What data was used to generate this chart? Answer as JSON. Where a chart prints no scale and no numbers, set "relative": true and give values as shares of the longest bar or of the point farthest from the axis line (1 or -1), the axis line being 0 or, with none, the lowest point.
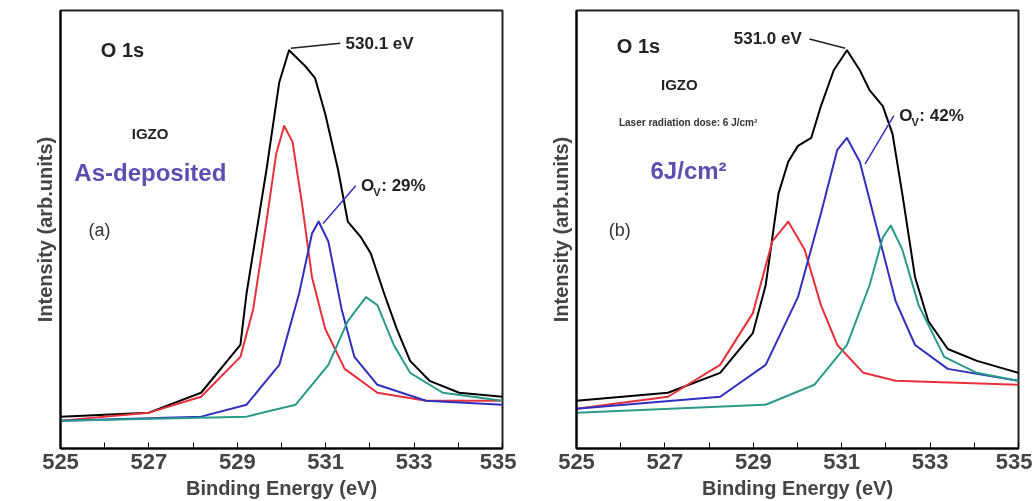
{
  "chart_data": [
    {
      "type": "line",
      "relative": true,
      "xlabel": "Binding Energy (eV)",
      "ylabel": "Intensity (arb.units)",
      "xlim": [
        525,
        535
      ],
      "xticks": [
        525,
        {
          "value": 526,
          "label": null
        },
        527,
        {
          "value": 528,
          "label": null
        },
        529,
        {
          "value": 530,
          "label": null
        },
        531,
        {
          "value": 532,
          "label": null
        },
        533,
        {
          "value": 534,
          "label": null
        },
        535
      ],
      "tick_labels": "x",
      "grid": false,
      "marker": "none",
      "line_style": "solid",
      "annotations": [
        "O 1s",
        "IGZO",
        "As-deposited",
        "(a)",
        {
          "text": "530.1 eV",
          "x": 530.17,
          "y": 1.0
        },
        {
          "text": "O$_{V}$: 29%",
          "x": 530.9,
          "y": 0.56
        }
      ],
      "series": [
        {
          "color": "#000000",
          "x": [
            525,
            527.0,
            528.18,
            529.07,
            529.21,
            529.66,
            529.95,
            530.17,
            530.54,
            530.76,
            530.99,
            531.28,
            531.5,
            531.8,
            532.02,
            532.32,
            532.61,
            532.91,
            533.35,
            534.02,
            535
          ],
          "values": [
            0.08,
            0.09,
            0.14,
            0.26,
            0.39,
            0.7,
            0.92,
            1.0,
            0.96,
            0.93,
            0.84,
            0.7,
            0.57,
            0.53,
            0.49,
            0.39,
            0.3,
            0.22,
            0.17,
            0.14,
            0.13
          ]
        },
        {
          "color": "#e8303a",
          "x": [
            525,
            527.0,
            528.18,
            529.07,
            529.36,
            529.66,
            529.88,
            530.06,
            530.25,
            530.47,
            530.69,
            530.99,
            531.43,
            532.17,
            533.27,
            535
          ],
          "values": [
            0.07,
            0.09,
            0.13,
            0.23,
            0.35,
            0.57,
            0.74,
            0.81,
            0.77,
            0.61,
            0.43,
            0.3,
            0.2,
            0.14,
            0.12,
            0.12
          ]
        },
        {
          "color": "#3030c0",
          "x": [
            525,
            528.18,
            529.21,
            529.95,
            530.4,
            530.69,
            530.84,
            531.06,
            531.36,
            531.65,
            532.17,
            533.27,
            535
          ],
          "values": [
            0.07,
            0.08,
            0.11,
            0.21,
            0.39,
            0.54,
            0.57,
            0.52,
            0.35,
            0.23,
            0.16,
            0.12,
            0.11
          ]
        },
        {
          "color": "#2a9a8a",
          "x": [
            525,
            529.21,
            530.32,
            531.06,
            531.5,
            531.91,
            532.17,
            532.54,
            532.91,
            533.65,
            535
          ],
          "values": [
            0.07,
            0.08,
            0.11,
            0.21,
            0.32,
            0.38,
            0.36,
            0.26,
            0.19,
            0.14,
            0.12
          ]
        }
      ]
    },
    {
      "type": "line",
      "relative": true,
      "xlabel": "Binding Energy (eV)",
      "ylabel": "Intensity (arb.units)",
      "xlim": [
        525,
        535
      ],
      "xticks": [
        525,
        {
          "value": 526,
          "label": null
        },
        527,
        {
          "value": 528,
          "label": null
        },
        529,
        {
          "value": 530,
          "label": null
        },
        531,
        {
          "value": 532,
          "label": null
        },
        533,
        {
          "value": 534,
          "label": null
        },
        535
      ],
      "tick_labels": "x",
      "grid": false,
      "marker": "none",
      "line_style": "solid",
      "annotations": [
        "O 1s",
        "IGZO",
        "Laser radiation dose: 6 J/cm²",
        "6J/cm²",
        "(b)",
        {
          "text": "531.0 eV",
          "x": 531.12,
          "y": 1.0
        },
        {
          "text": "O$_{V}$: 42%",
          "x": 531.49,
          "y": 0.71
        }
      ],
      "series": [
        {
          "color": "#000000",
          "x": [
            525,
            527.07,
            528.25,
            528.99,
            529.28,
            529.57,
            529.79,
            530.01,
            530.31,
            530.53,
            530.82,
            531.12,
            531.41,
            531.63,
            531.93,
            532.15,
            532.37,
            532.66,
            532.96,
            533.4,
            534.06,
            535
          ],
          "values": [
            0.12,
            0.14,
            0.19,
            0.29,
            0.41,
            0.64,
            0.72,
            0.76,
            0.78,
            0.86,
            0.95,
            1.0,
            0.95,
            0.9,
            0.86,
            0.79,
            0.64,
            0.43,
            0.32,
            0.25,
            0.22,
            0.19
          ]
        },
        {
          "color": "#e8303a",
          "x": [
            525,
            527.07,
            528.25,
            528.99,
            529.43,
            529.79,
            530.16,
            530.53,
            530.9,
            531.49,
            532.22,
            535
          ],
          "values": [
            0.1,
            0.13,
            0.21,
            0.34,
            0.52,
            0.57,
            0.5,
            0.36,
            0.26,
            0.19,
            0.17,
            0.16
          ]
        },
        {
          "color": "#3030c0",
          "x": [
            525,
            528.25,
            529.28,
            530.01,
            530.53,
            530.9,
            531.12,
            531.41,
            531.78,
            532.22,
            532.66,
            533.4,
            535
          ],
          "values": [
            0.1,
            0.13,
            0.21,
            0.38,
            0.59,
            0.75,
            0.78,
            0.72,
            0.56,
            0.37,
            0.26,
            0.2,
            0.17
          ]
        },
        {
          "color": "#2a9a8a",
          "x": [
            525,
            529.28,
            530.38,
            531.12,
            531.63,
            531.93,
            532.11,
            532.37,
            532.74,
            533.32,
            534.06,
            535
          ],
          "values": [
            0.09,
            0.11,
            0.16,
            0.26,
            0.41,
            0.53,
            0.56,
            0.5,
            0.36,
            0.23,
            0.19,
            0.17
          ]
        }
      ]
    }
  ]
}
